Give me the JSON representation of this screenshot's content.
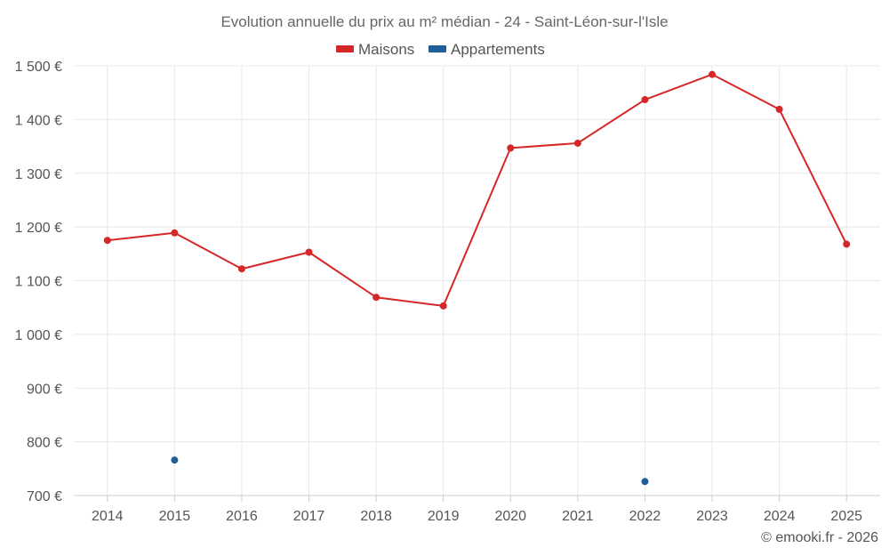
{
  "chart_data": {
    "type": "line",
    "title": "Evolution annuelle du prix au m² médian - 24 - Saint-Léon-sur-l'Isle",
    "xlabel": "",
    "ylabel": "",
    "categories": [
      "2014",
      "2015",
      "2016",
      "2017",
      "2018",
      "2019",
      "2020",
      "2021",
      "2022",
      "2023",
      "2024",
      "2025"
    ],
    "ylim": [
      700,
      1500
    ],
    "y_ticks": [
      700,
      800,
      900,
      1000,
      1100,
      1200,
      1300,
      1400,
      1500
    ],
    "y_tick_labels": [
      "700 €",
      "800 €",
      "900 €",
      "1 000 €",
      "1 100 €",
      "1 200 €",
      "1 300 €",
      "1 400 €",
      "1 500 €"
    ],
    "grid": true,
    "legend_position": "top-center",
    "series": [
      {
        "name": "Maisons",
        "color": "#d62728",
        "values": [
          1175,
          1189,
          1122,
          1153,
          1069,
          1053,
          1347,
          1356,
          1437,
          1484,
          1419,
          1168
        ]
      },
      {
        "name": "Appartements",
        "color": "#1f5f99",
        "values": [
          null,
          766,
          null,
          null,
          null,
          null,
          null,
          null,
          726,
          null,
          null,
          null
        ]
      }
    ],
    "credit": "© emooki.fr - 2026"
  }
}
